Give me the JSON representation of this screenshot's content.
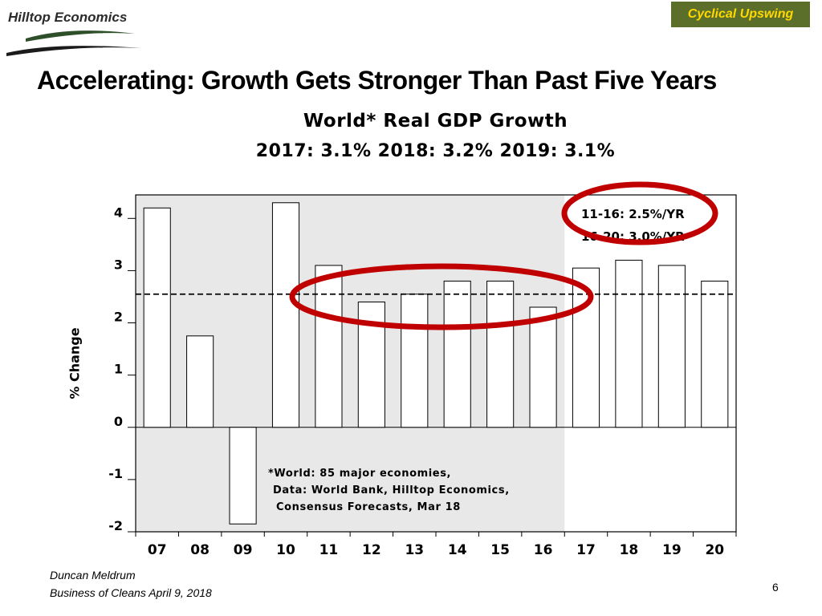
{
  "header": {
    "logo_text": "Hilltop Economics",
    "badge": "Cyclical Upswing",
    "badge_color": "#5b6f2a",
    "badge_text_color": "#ffd800"
  },
  "slide_title": "Accelerating: Growth Gets Stronger Than Past Five Years",
  "chart_data": {
    "type": "bar",
    "title": "World* Real GDP Growth",
    "subtitle": "2017: 3.1%  2018: 3.2%  2019: 3.1%",
    "ylabel": "% Change",
    "categories": [
      "07",
      "08",
      "09",
      "10",
      "11",
      "12",
      "13",
      "14",
      "15",
      "16",
      "17",
      "18",
      "19",
      "20"
    ],
    "values": [
      4.2,
      1.75,
      -1.85,
      4.3,
      3.1,
      2.4,
      2.55,
      2.8,
      2.8,
      2.3,
      3.05,
      3.2,
      3.1,
      2.8
    ],
    "ylim": [
      -2,
      4.45
    ],
    "yticks": [
      "4",
      "3",
      "2",
      "1",
      "0",
      "-1",
      "-2"
    ],
    "ytick_values": [
      4,
      3,
      2,
      1,
      0,
      -1,
      -2
    ],
    "average_line": 2.55,
    "shaded_categories": [
      "07",
      "08",
      "09",
      "10",
      "11",
      "12",
      "13",
      "14",
      "15",
      "16"
    ],
    "shade_color": "#e8e8e8",
    "circle_color": "#c00000",
    "legend_lines": [
      "11-16: 2.5%/YR",
      "16-20: 3.0%/YR"
    ],
    "note_lines": [
      "*World: 85 major economies,",
      "Data: World Bank, Hilltop Economics,",
      "Consensus Forecasts, Mar 18"
    ]
  },
  "footer": {
    "author": "Duncan Meldrum",
    "event": "Business of Cleans April 9, 2018",
    "page": "6"
  }
}
